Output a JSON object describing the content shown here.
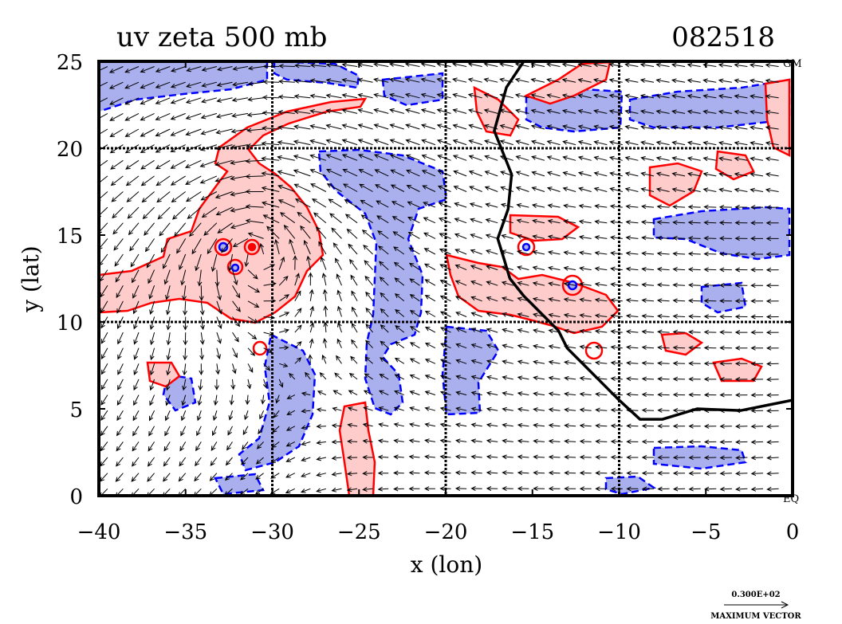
{
  "chart_data": {
    "type": "map",
    "title": "uv zeta 500 mb",
    "timestamp": "082518",
    "xlabel": "x (lon)",
    "ylabel": "y (lat)",
    "xlim": [
      -40,
      0
    ],
    "ylim": [
      0,
      25
    ],
    "x_ticks": [
      -40,
      -35,
      -30,
      -25,
      -20,
      -15,
      -10,
      -5,
      0
    ],
    "y_ticks": [
      0,
      5,
      10,
      15,
      20,
      25
    ],
    "x_tick_labels": [
      "−40",
      "−35",
      "−30",
      "−25",
      "−20",
      "−15",
      "−10",
      "−5",
      "0"
    ],
    "y_tick_labels": [
      "0",
      "5",
      "10",
      "15",
      "20",
      "25"
    ],
    "gridlines_lon": [
      -30,
      -20,
      -10
    ],
    "gridlines_lat": [
      10,
      20
    ],
    "grid": true,
    "corner_labels": {
      "top_right": "GM",
      "bottom_right": "EQ"
    },
    "contours": {
      "positive_vorticity_color": "#ff0000",
      "positive_fill": "#ffcccc",
      "negative_vorticity_color": "#0000ff",
      "negative_fill": "#aab0ee",
      "negative_style": "dashed"
    },
    "cyclone_center": [
      -31,
      14.3
    ],
    "coastline": [
      [
        -15.5,
        25
      ],
      [
        -16.5,
        23.5
      ],
      [
        -17.2,
        21
      ],
      [
        -16.8,
        20
      ],
      [
        -16.2,
        18.5
      ],
      [
        -16.4,
        16.5
      ],
      [
        -17.0,
        14.8
      ],
      [
        -16.6,
        13.5
      ],
      [
        -16.3,
        12.5
      ],
      [
        -15.5,
        11.5
      ],
      [
        -14.5,
        10.5
      ],
      [
        -13.5,
        9.5
      ],
      [
        -13.0,
        8.5
      ],
      [
        -12.0,
        7.5
      ],
      [
        -11.0,
        6.5
      ],
      [
        -10.0,
        5.5
      ],
      [
        -8.8,
        4.4
      ],
      [
        -7.5,
        4.4
      ],
      [
        -5.5,
        5.0
      ],
      [
        -3.0,
        4.9
      ],
      [
        -1.5,
        5.2
      ],
      [
        0,
        5.5
      ]
    ],
    "wind_vectors": "uv field drawn as arrows"
  },
  "legend": {
    "reference_value": "0.300E+02",
    "reference_label": "MAXIMUM VECTOR"
  }
}
